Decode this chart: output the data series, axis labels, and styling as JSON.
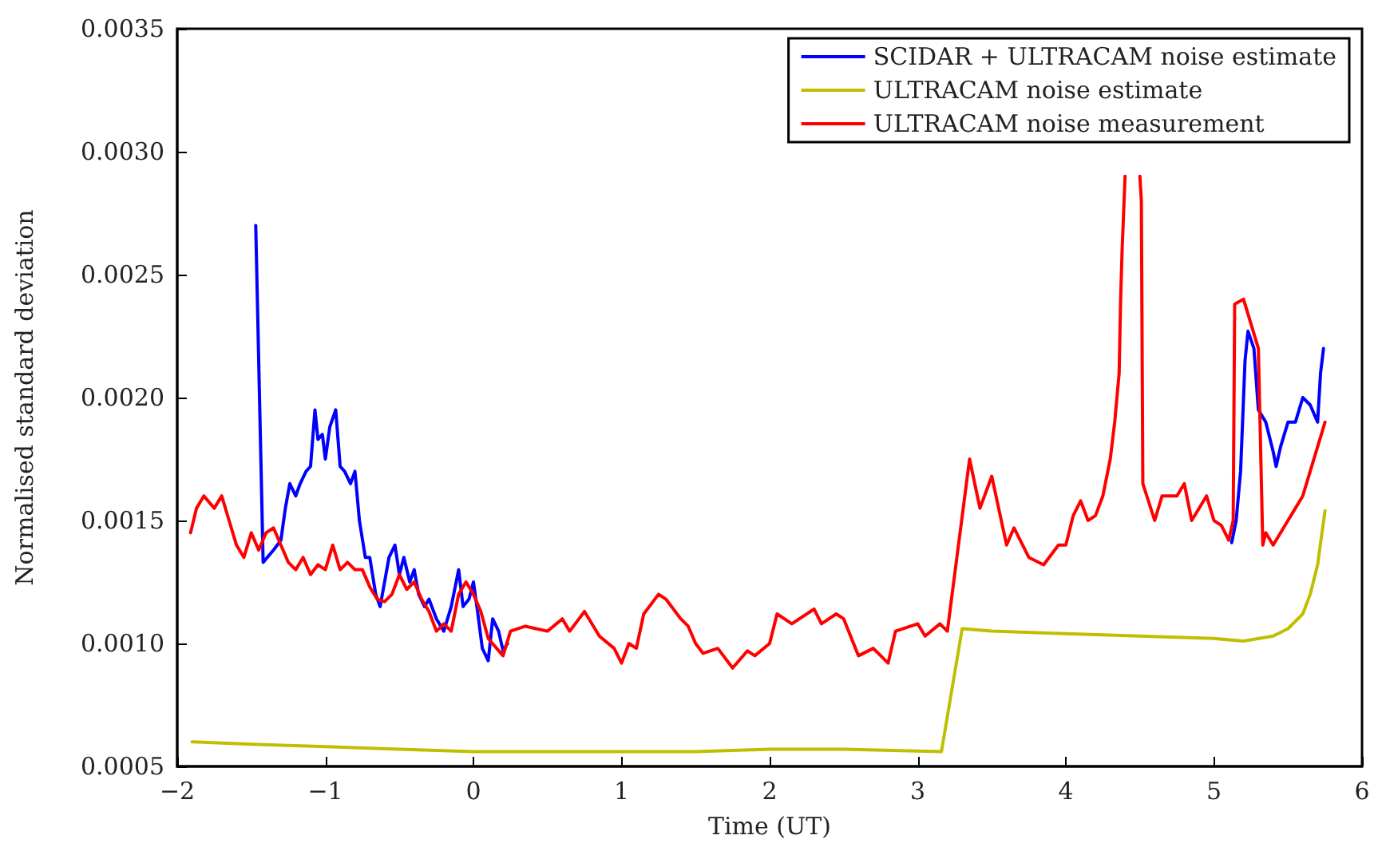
{
  "chart_data": {
    "type": "line",
    "xlabel": "Time (UT)",
    "ylabel": "Normalised standard deviation",
    "xlim": [
      -2,
      6
    ],
    "ylim": [
      0.0005,
      0.0035
    ],
    "xticks": [
      {
        "value": -2,
        "label": "−2"
      },
      {
        "value": -1,
        "label": "−1"
      },
      0,
      1,
      2,
      3,
      4,
      5,
      6
    ],
    "yticks": [
      {
        "value": 0.0005,
        "label": "0.0005"
      },
      {
        "value": 0.001,
        "label": "0.0010"
      },
      {
        "value": 0.0015,
        "label": "0.0015"
      },
      {
        "value": 0.002,
        "label": "0.0020"
      },
      {
        "value": 0.0025,
        "label": "0.0025"
      },
      {
        "value": 0.003,
        "label": "0.0030"
      },
      {
        "value": 0.0035,
        "label": "0.0035"
      }
    ],
    "grid": false,
    "legend": "top right",
    "marker": "none",
    "line_style": "solid",
    "series": [
      {
        "name": "SCIDAR + ULTRACAM noise estimate",
        "color": "#0000ff",
        "x": [
          -1.47,
          -1.42,
          -1.35,
          -1.3,
          -1.27,
          -1.24,
          -1.2,
          -1.17,
          -1.13,
          -1.1,
          -1.07,
          -1.05,
          -1.02,
          -1.0,
          -0.97,
          -0.93,
          -0.9,
          -0.87,
          -0.83,
          -0.8,
          -0.77,
          -0.73,
          -0.7,
          -0.66,
          -0.63,
          -0.6,
          -0.57,
          -0.53,
          -0.5,
          -0.47,
          -0.43,
          -0.4,
          -0.37,
          -0.33,
          -0.3,
          -0.25,
          -0.2,
          -0.15,
          -0.1,
          -0.07,
          -0.03,
          0.0,
          0.03,
          0.06,
          0.1,
          0.13,
          0.17,
          0.2,
          0.23,
          2,
          5.12,
          5.15,
          5.18,
          5.21,
          5.23,
          5.27,
          5.3,
          5.35,
          5.4,
          5.42,
          5.45,
          5.5,
          5.55,
          5.6,
          5.65,
          5.7,
          5.72,
          5.74
        ],
        "values": [
          0.0027,
          0.00133,
          0.00138,
          0.00142,
          0.00155,
          0.00165,
          0.0016,
          0.00165,
          0.0017,
          0.00172,
          0.00195,
          0.00183,
          0.00185,
          0.00175,
          0.00188,
          0.00195,
          0.00172,
          0.0017,
          0.00165,
          0.0017,
          0.0015,
          0.00135,
          0.00135,
          0.0012,
          0.00115,
          0.00125,
          0.00135,
          0.0014,
          0.00128,
          0.00135,
          0.00125,
          0.0013,
          0.0012,
          0.00115,
          0.00118,
          0.0011,
          0.00105,
          0.00115,
          0.0013,
          0.00115,
          0.00118,
          0.00125,
          0.00112,
          0.00098,
          0.00093,
          0.0011,
          0.00105,
          0.00097,
          0.001,
          null,
          0.00141,
          0.0015,
          0.0017,
          0.00215,
          0.00227,
          0.0022,
          0.00195,
          0.0019,
          0.00178,
          0.00172,
          0.0018,
          0.0019,
          0.0019,
          0.002,
          0.00197,
          0.0019,
          0.0021,
          0.0022
        ]
      },
      {
        "name": "ULTRACAM noise estimate",
        "color": "#bfbf00",
        "x": [
          -1.9,
          -1.5,
          -1.0,
          -0.5,
          0,
          0.5,
          1,
          1.5,
          2,
          2.5,
          3.16,
          3.3,
          3.5,
          4,
          4.5,
          5,
          5.2,
          5.4,
          5.5,
          5.6,
          5.65,
          5.7,
          5.75
        ],
        "values": [
          0.0006,
          0.00059,
          0.00058,
          0.00057,
          0.00056,
          0.00056,
          0.00056,
          0.00056,
          0.00057,
          0.00057,
          0.00056,
          0.00106,
          0.00105,
          0.00104,
          0.00103,
          0.00102,
          0.00101,
          0.00103,
          0.00106,
          0.00112,
          0.0012,
          0.00132,
          0.00154
        ]
      },
      {
        "name": "ULTRACAM noise measurement",
        "color": "#ff0000",
        "x": [
          -1.91,
          -1.87,
          -1.82,
          -1.75,
          -1.7,
          -1.65,
          -1.6,
          -1.55,
          -1.5,
          -1.45,
          -1.4,
          -1.35,
          -1.3,
          -1.25,
          -1.2,
          -1.15,
          -1.1,
          -1.05,
          -1.0,
          -0.95,
          -0.9,
          -0.85,
          -0.8,
          -0.75,
          -0.7,
          -0.65,
          -0.6,
          -0.55,
          -0.5,
          -0.45,
          -0.4,
          -0.35,
          -0.3,
          -0.25,
          -0.2,
          -0.15,
          -0.1,
          -0.05,
          0.0,
          0.05,
          0.1,
          0.2,
          0.25,
          0.35,
          0.5,
          0.6,
          0.65,
          0.75,
          0.85,
          0.95,
          1.0,
          1.05,
          1.1,
          1.15,
          1.25,
          1.3,
          1.4,
          1.45,
          1.5,
          1.55,
          1.65,
          1.75,
          1.85,
          1.9,
          2.0,
          2.05,
          2.15,
          2.3,
          2.35,
          2.45,
          2.5,
          2.6,
          2.7,
          2.8,
          2.85,
          3.0,
          3.05,
          3.15,
          3.2,
          3.35,
          3.42,
          3.5,
          3.6,
          3.65,
          3.75,
          3.85,
          3.95,
          4.0,
          4.05,
          4.1,
          4.15,
          4.2,
          4.25,
          4.3,
          4.33,
          4.36,
          4.37,
          4.38,
          4.4,
          4.45,
          4.5,
          4.51,
          4.52,
          4.6,
          4.65,
          4.75,
          4.8,
          4.85,
          4.95,
          5.0,
          5.05,
          5.1,
          5.13,
          5.14,
          5.2,
          5.25,
          5.3,
          5.33,
          5.35,
          5.4,
          5.5,
          5.55,
          5.6,
          5.65,
          5.7,
          5.75
        ],
        "values": [
          0.00145,
          0.00155,
          0.0016,
          0.00155,
          0.0016,
          0.0015,
          0.0014,
          0.00135,
          0.00145,
          0.00138,
          0.00145,
          0.00147,
          0.0014,
          0.00133,
          0.0013,
          0.00135,
          0.00128,
          0.00132,
          0.0013,
          0.0014,
          0.0013,
          0.00133,
          0.0013,
          0.0013,
          0.00123,
          0.00118,
          0.00117,
          0.0012,
          0.00128,
          0.00122,
          0.00125,
          0.00118,
          0.00113,
          0.00105,
          0.00108,
          0.00105,
          0.0012,
          0.00125,
          0.0012,
          0.00113,
          0.00102,
          0.00095,
          0.00105,
          0.00107,
          0.00105,
          0.0011,
          0.00105,
          0.00113,
          0.00103,
          0.00098,
          0.00092,
          0.001,
          0.00098,
          0.00112,
          0.0012,
          0.00118,
          0.0011,
          0.00107,
          0.001,
          0.00096,
          0.00098,
          0.0009,
          0.00097,
          0.00095,
          0.001,
          0.00112,
          0.00108,
          0.00114,
          0.00108,
          0.00112,
          0.0011,
          0.00095,
          0.00098,
          0.00092,
          0.00105,
          0.00108,
          0.00103,
          0.00108,
          0.00105,
          0.00175,
          0.00155,
          0.00168,
          0.0014,
          0.00147,
          0.00135,
          0.00132,
          0.0014,
          0.0014,
          0.00152,
          0.00158,
          0.0015,
          0.00152,
          0.0016,
          0.00175,
          0.0019,
          0.0021,
          0.0024,
          0.0026,
          0.0029,
          null,
          0.0029,
          0.0028,
          0.00165,
          0.0015,
          0.0016,
          0.0016,
          0.00165,
          0.0015,
          0.0016,
          0.0015,
          0.00148,
          0.00142,
          0.0015,
          0.00238,
          0.0024,
          0.0023,
          0.0022,
          0.0014,
          0.00145,
          0.0014,
          0.0015,
          0.00155,
          0.0016,
          0.0017,
          0.0018,
          0.0019
        ]
      }
    ]
  }
}
